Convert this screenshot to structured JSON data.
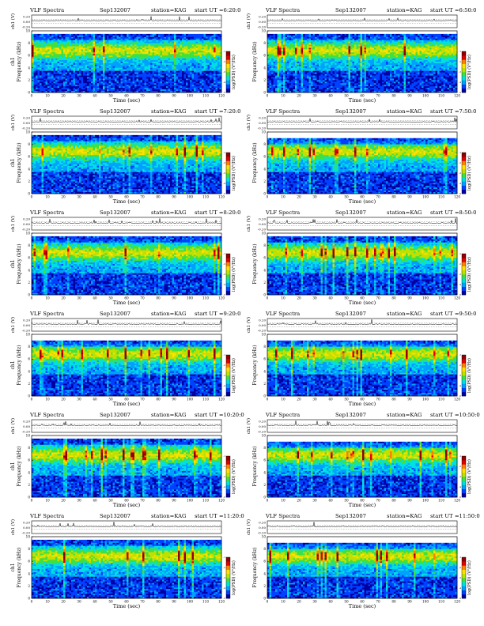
{
  "labels": {
    "title": "VLF Spectra",
    "ch1_voltage_axis": "ch1 (V)",
    "frequency_axis": "Frequency (kHz)",
    "ch1_side_label": "ch1",
    "time_axis": "Time (sec)",
    "colorbar_axis": "log(PSD) (V²/Hz)",
    "start_prefix": "start UT ="
  },
  "chart_data": {
    "type": "heatmap",
    "panel_count": 12,
    "xlim": [
      0,
      120
    ],
    "ylim_frequency_khz": [
      0,
      10
    ],
    "x_ticks": [
      0,
      10,
      20,
      30,
      40,
      50,
      60,
      70,
      80,
      90,
      100,
      110,
      120
    ],
    "y_ticks_frequency": [
      0,
      2,
      4,
      6,
      8,
      10
    ],
    "y_ticks_voltage": [
      "0.20",
      "0.00",
      "-0.20"
    ],
    "colorbar_ticks": [
      "-1",
      "-2",
      "-3",
      "-4",
      "-5"
    ],
    "colormap": [
      "#0000a0",
      "#0040ff",
      "#00a0ff",
      "#00e0e0",
      "#40e040",
      "#c0e000",
      "#ffe000",
      "#ff8000",
      "#e00000",
      "#900000"
    ],
    "panels": [
      {
        "date": "Sep132007",
        "station": "station=KAG",
        "start": "6:20:0",
        "band_top_khz": 9.5,
        "seed": 11
      },
      {
        "date": "Sep132007",
        "station": "station=KAG",
        "start": "6:50:0",
        "band_top_khz": 9.5,
        "seed": 23
      },
      {
        "date": "Sep132007",
        "station": "station=KAG",
        "start": "7:20:0",
        "band_top_khz": 9.5,
        "seed": 37
      },
      {
        "date": "Sep132007",
        "station": "station=KAG",
        "start": "7:50:0",
        "band_top_khz": 9.0,
        "seed": 41
      },
      {
        "date": "Sep132007",
        "station": "station=KAG",
        "start": "8:20:0",
        "band_top_khz": 9.5,
        "seed": 53
      },
      {
        "date": "Sep132007",
        "station": "station=KAG",
        "start": "8:50:0",
        "band_top_khz": 9.5,
        "seed": 67
      },
      {
        "date": "Sep132007",
        "station": "station=KAG",
        "start": "9:20:0",
        "band_top_khz": 9.0,
        "seed": 71
      },
      {
        "date": "Sep132007",
        "station": "station=KAG",
        "start": "9:50:0",
        "band_top_khz": 9.0,
        "seed": 83
      },
      {
        "date": "Sep132007",
        "station": "station=KAG",
        "start": "10:20:0",
        "band_top_khz": 9.5,
        "seed": 97
      },
      {
        "date": "Sep132007",
        "station": "station=KAG",
        "start": "10:50:0",
        "band_top_khz": 9.0,
        "seed": 101
      },
      {
        "date": "Sep132007",
        "station": "station=KAG",
        "start": "11:20:0",
        "band_top_khz": 9.5,
        "seed": 113
      },
      {
        "date": "Sep132007",
        "station": "station=KAG",
        "start": "11:50:0",
        "band_top_khz": 9.0,
        "seed": 127
      }
    ]
  }
}
